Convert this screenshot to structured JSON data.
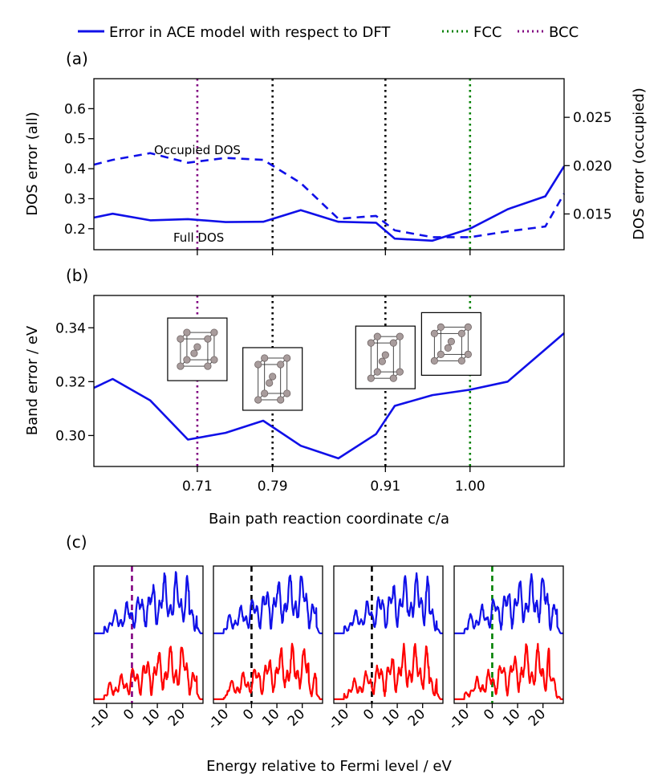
{
  "legend": {
    "items": [
      {
        "label": "Error in ACE model with respect to DFT",
        "color": "#1010e8",
        "style": "solid"
      },
      {
        "label": "FCC",
        "color": "#008000",
        "style": "dotted"
      },
      {
        "label": "BCC",
        "color": "#800080",
        "style": "dotted"
      }
    ]
  },
  "colors": {
    "blue": "#1010e8",
    "red": "#ff0000",
    "purple": "#800080",
    "green": "#008000",
    "black": "#000000"
  },
  "chart_data": [
    {
      "id": "a",
      "panel_label": "(a)",
      "type": "line",
      "ylabel": "DOS error (all)",
      "ylabel_right": "DOS error (occupied)",
      "xlim": [
        0.6,
        1.1
      ],
      "ylim": [
        0.13,
        0.7
      ],
      "ylim_right": [
        0.0113,
        0.029
      ],
      "yticks": [
        0.2,
        0.3,
        0.4,
        0.5,
        0.6
      ],
      "ytick_labels": [
        "0.2",
        "0.3",
        "0.4",
        "0.5",
        "0.6"
      ],
      "yticks_right": [
        0.015,
        0.02,
        0.025
      ],
      "ytick_labels_right": [
        "0.015",
        "0.020",
        "0.025"
      ],
      "vlines": [
        {
          "x": 0.71,
          "color": "#800080"
        },
        {
          "x": 0.79,
          "color": "#000000"
        },
        {
          "x": 0.91,
          "color": "#000000"
        },
        {
          "x": 1.0,
          "color": "#008000"
        }
      ],
      "series": [
        {
          "name": "Full DOS",
          "axis": "left",
          "style": "solid",
          "color": "#1010e8",
          "x": [
            0.6,
            0.62,
            0.66,
            0.7,
            0.74,
            0.78,
            0.82,
            0.86,
            0.9,
            0.92,
            0.96,
            1.0,
            1.04,
            1.08,
            1.1
          ],
          "values": [
            0.237,
            0.25,
            0.228,
            0.232,
            0.222,
            0.223,
            0.262,
            0.223,
            0.22,
            0.167,
            0.16,
            0.2,
            0.265,
            0.308,
            0.408
          ]
        },
        {
          "name": "Occupied DOS",
          "axis": "right",
          "style": "dashed",
          "color": "#1010e8",
          "x": [
            0.6,
            0.62,
            0.66,
            0.7,
            0.74,
            0.78,
            0.82,
            0.86,
            0.9,
            0.92,
            0.96,
            1.0,
            1.04,
            1.08,
            1.1
          ],
          "values": [
            0.0201,
            0.0206,
            0.0213,
            0.0203,
            0.0208,
            0.0206,
            0.0182,
            0.0145,
            0.0148,
            0.0133,
            0.0126,
            0.0126,
            0.0132,
            0.0137,
            0.0171
          ]
        }
      ],
      "annotations": [
        {
          "text": "Occupied DOS",
          "x": 0.78,
          "y": 0.44
        },
        {
          "text": "Full DOS",
          "x": 0.74,
          "y": 0.18
        }
      ]
    },
    {
      "id": "b",
      "panel_label": "(b)",
      "type": "line",
      "ylabel": "Band error / eV",
      "xlabel": "Bain path reaction coordinate c/a",
      "xlim": [
        0.6,
        1.1
      ],
      "ylim": [
        0.2885,
        0.352
      ],
      "xticks": [
        0.71,
        0.79,
        0.91,
        1.0
      ],
      "xtick_labels": [
        "0.71",
        "0.79",
        "0.91",
        "1.00"
      ],
      "yticks": [
        0.3,
        0.32,
        0.34
      ],
      "ytick_labels": [
        "0.30",
        "0.32",
        "0.34"
      ],
      "vlines": [
        {
          "x": 0.71,
          "color": "#800080"
        },
        {
          "x": 0.79,
          "color": "#000000"
        },
        {
          "x": 0.91,
          "color": "#000000"
        },
        {
          "x": 1.0,
          "color": "#008000"
        }
      ],
      "series": [
        {
          "name": "Band error",
          "style": "solid",
          "color": "#1010e8",
          "x": [
            0.6,
            0.62,
            0.66,
            0.7,
            0.74,
            0.78,
            0.82,
            0.86,
            0.9,
            0.92,
            0.96,
            1.0,
            1.04,
            1.08,
            1.1
          ],
          "values": [
            0.3177,
            0.321,
            0.313,
            0.2985,
            0.301,
            0.3055,
            0.2962,
            0.2915,
            0.3005,
            0.311,
            0.315,
            0.317,
            0.32,
            0.332,
            0.338
          ]
        }
      ],
      "insets": [
        {
          "x": 0.71,
          "y": 0.332,
          "name": "bcc-structure-inset"
        },
        {
          "x": 0.79,
          "y": 0.321,
          "name": "bct-structure-inset-1"
        },
        {
          "x": 0.91,
          "y": 0.329,
          "name": "bct-structure-inset-2"
        },
        {
          "x": 0.98,
          "y": 0.334,
          "name": "fcc-structure-inset"
        }
      ]
    },
    {
      "id": "c",
      "panel_label": "(c)",
      "type": "line",
      "xlabel": "Energy relative to Fermi level / eV",
      "xlim": [
        -15,
        28
      ],
      "xticks": [
        -10,
        0,
        10,
        20
      ],
      "xtick_labels": [
        "-10",
        "0",
        "10",
        "20"
      ],
      "subplots": [
        {
          "fermi_color": "#800080",
          "seed": 1
        },
        {
          "fermi_color": "#000000",
          "seed": 2
        },
        {
          "fermi_color": "#000000",
          "seed": 3
        },
        {
          "fermi_color": "#008000",
          "seed": 4
        }
      ],
      "series": [
        {
          "name": "Blue DOS",
          "color": "#1010e8"
        },
        {
          "name": "Red DOS",
          "color": "#ff0000"
        }
      ]
    }
  ]
}
